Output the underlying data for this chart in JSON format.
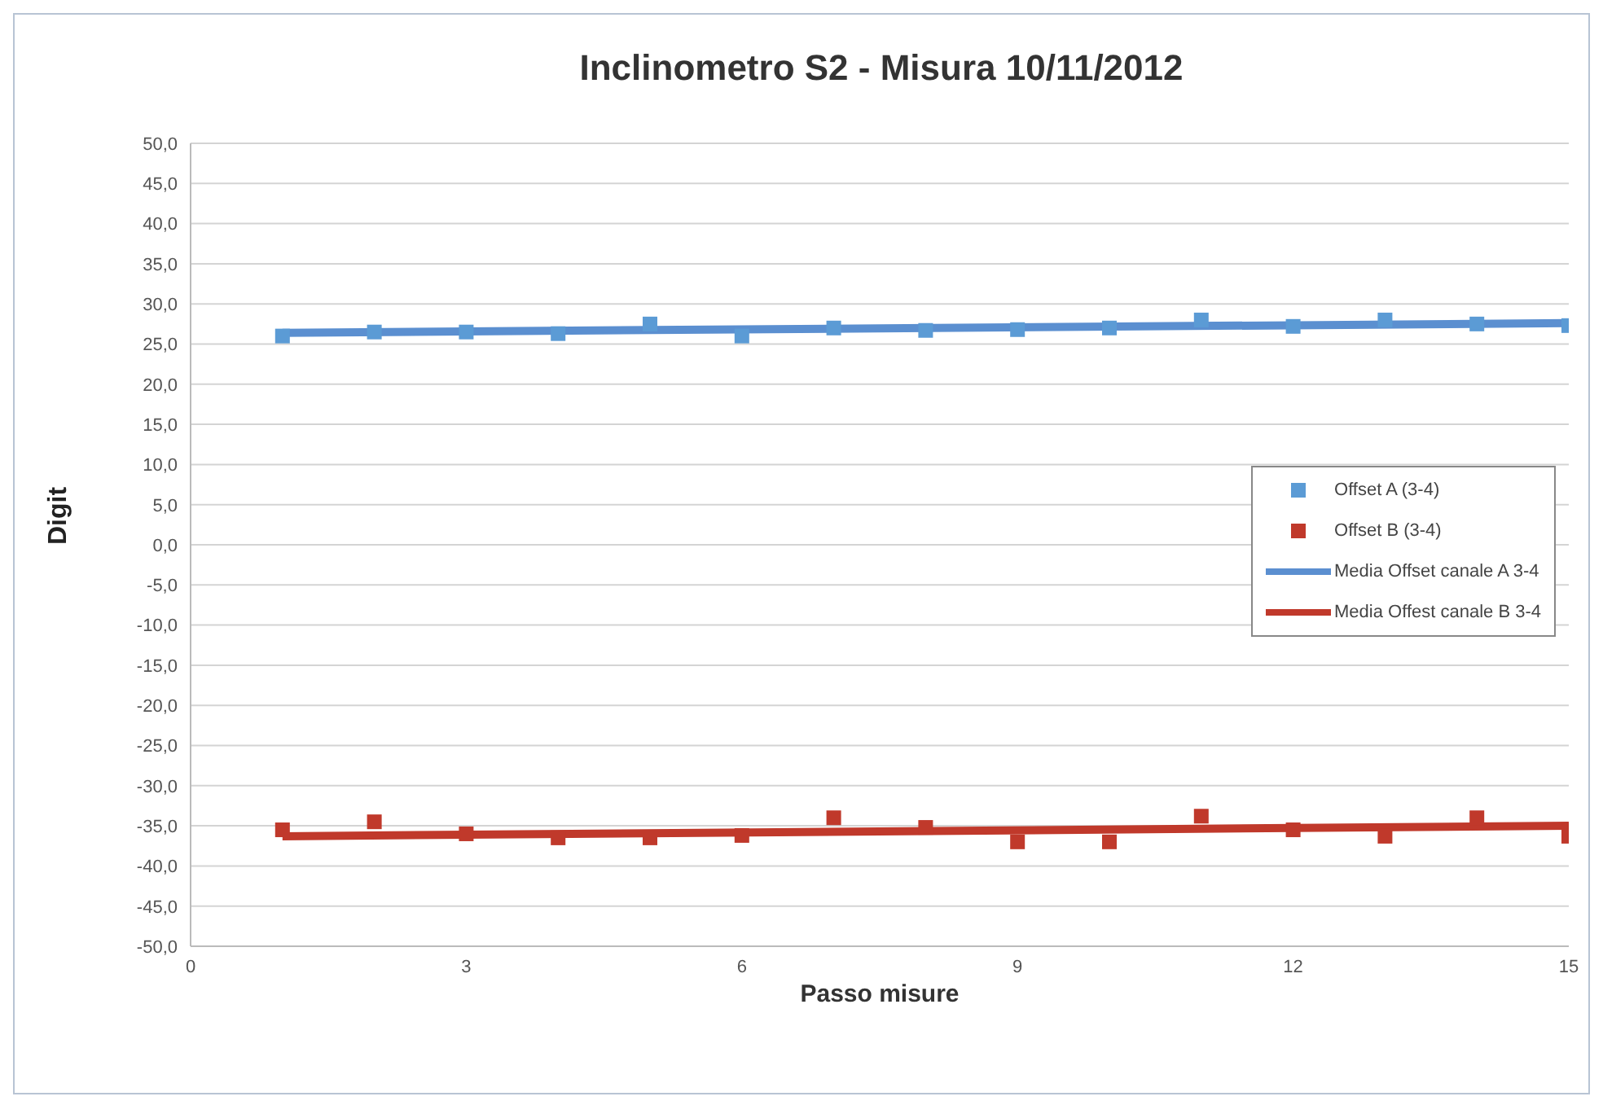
{
  "chart_data": {
    "type": "scatter",
    "title": "Inclinometro S2 - Misura 10/11/2012",
    "xlabel": "Passo misure",
    "ylabel": "Digit",
    "xlim": [
      0,
      15
    ],
    "xticks": [
      0,
      3,
      6,
      9,
      12,
      15
    ],
    "ylim": [
      -50,
      50
    ],
    "yticks": [
      {
        "value": -50,
        "label": "-50,0"
      },
      {
        "value": -45,
        "label": "-45,0"
      },
      {
        "value": -40,
        "label": "-40,0"
      },
      {
        "value": -35,
        "label": "-35,0"
      },
      {
        "value": -30,
        "label": "-30,0"
      },
      {
        "value": -25,
        "label": "-25,0"
      },
      {
        "value": -20,
        "label": "-20,0"
      },
      {
        "value": -15,
        "label": "-15,0"
      },
      {
        "value": -10,
        "label": "-10,0"
      },
      {
        "value": -5,
        "label": "-5,0"
      },
      {
        "value": 0,
        "label": "0,0"
      },
      {
        "value": 5,
        "label": "5,0"
      },
      {
        "value": 10,
        "label": "10,0"
      },
      {
        "value": 15,
        "label": "15,0"
      },
      {
        "value": 20,
        "label": "20,0"
      },
      {
        "value": 25,
        "label": "25,0"
      },
      {
        "value": 30,
        "label": "30,0"
      },
      {
        "value": 35,
        "label": "35,0"
      },
      {
        "value": 40,
        "label": "40,0"
      },
      {
        "value": 45,
        "label": "45,0"
      },
      {
        "value": 50,
        "label": "50,0"
      }
    ],
    "grid": "y",
    "legend": "right",
    "series": [
      {
        "name": "Offset A (3-4)",
        "marker": "square",
        "color": "#5b9bd5",
        "x": [
          1,
          2,
          3,
          4,
          5,
          6,
          7,
          8,
          9,
          10,
          11,
          12,
          13,
          14,
          15
        ],
        "values": [
          26.0,
          26.5,
          26.5,
          26.3,
          27.5,
          26.0,
          27.0,
          26.7,
          26.8,
          27.0,
          28.0,
          27.2,
          28.0,
          27.5,
          27.3
        ]
      },
      {
        "name": "Offset B (3-4)",
        "marker": "square",
        "color": "#c0392b",
        "x": [
          1,
          2,
          3,
          4,
          5,
          6,
          7,
          8,
          9,
          10,
          11,
          12,
          13,
          14,
          15
        ],
        "values": [
          -35.5,
          -34.5,
          -36.0,
          -36.5,
          -36.5,
          -36.2,
          -34.0,
          -35.2,
          -37.0,
          -37.0,
          -33.8,
          -35.5,
          -36.3,
          -34.0,
          -36.3
        ]
      },
      {
        "name": "Media Offset canale A 3-4",
        "type": "line",
        "marker": "none",
        "line_style": "solid",
        "color": "#5b8fd0",
        "x": [
          1,
          15
        ],
        "values": [
          26.4,
          27.6
        ]
      },
      {
        "name": "Media Offest canale B 3-4",
        "type": "line",
        "marker": "none",
        "line_style": "solid",
        "color": "#c0392b",
        "x": [
          1,
          15
        ],
        "values": [
          -36.3,
          -35.0
        ]
      }
    ]
  }
}
